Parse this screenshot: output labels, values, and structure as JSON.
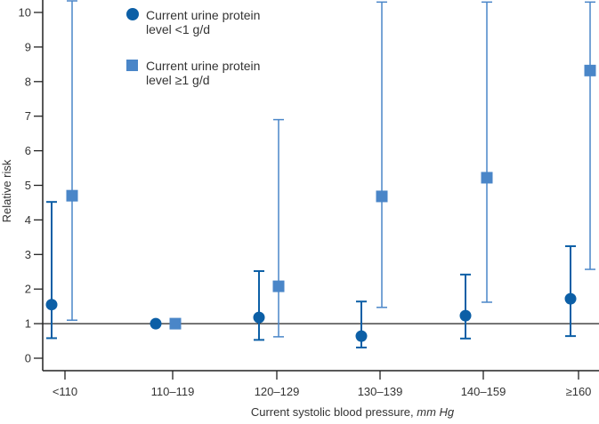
{
  "chart_data": {
    "type": "scatter",
    "title": "",
    "xlabel": "Current systolic blood pressure,",
    "xlabel_unit": "mm Hg",
    "ylabel": "Relative risk",
    "ylim": [
      0,
      10
    ],
    "yticks": [
      0,
      1,
      2,
      3,
      4,
      5,
      6,
      7,
      8,
      9,
      10
    ],
    "reference_line": 1,
    "grid": false,
    "legend_placement": "top-center",
    "categories": [
      "<110",
      "110–119",
      "120–129",
      "130–139",
      "140–159",
      "≥160"
    ],
    "series": [
      {
        "name_line1": "Current urine protein",
        "name_line2": "level <1 g/d",
        "marker": "circle",
        "color": "#0c5fa6",
        "values": [
          1.55,
          1.0,
          1.18,
          0.64,
          1.23,
          1.72
        ],
        "ci_low": [
          0.58,
          null,
          0.53,
          0.31,
          0.57,
          0.64
        ],
        "ci_high": [
          4.52,
          null,
          2.52,
          1.64,
          2.42,
          3.24
        ]
      },
      {
        "name_line1": "Current urine protein",
        "name_line2": "level ≥1 g/d",
        "marker": "square",
        "color": "#4a86c8",
        "values": [
          4.7,
          1.0,
          2.08,
          4.68,
          5.22,
          8.32
        ],
        "ci_low": [
          1.1,
          null,
          0.62,
          1.47,
          1.62,
          2.57
        ],
        "ci_high": [
          10.4,
          null,
          6.9,
          10.3,
          10.3,
          10.3
        ]
      }
    ]
  }
}
